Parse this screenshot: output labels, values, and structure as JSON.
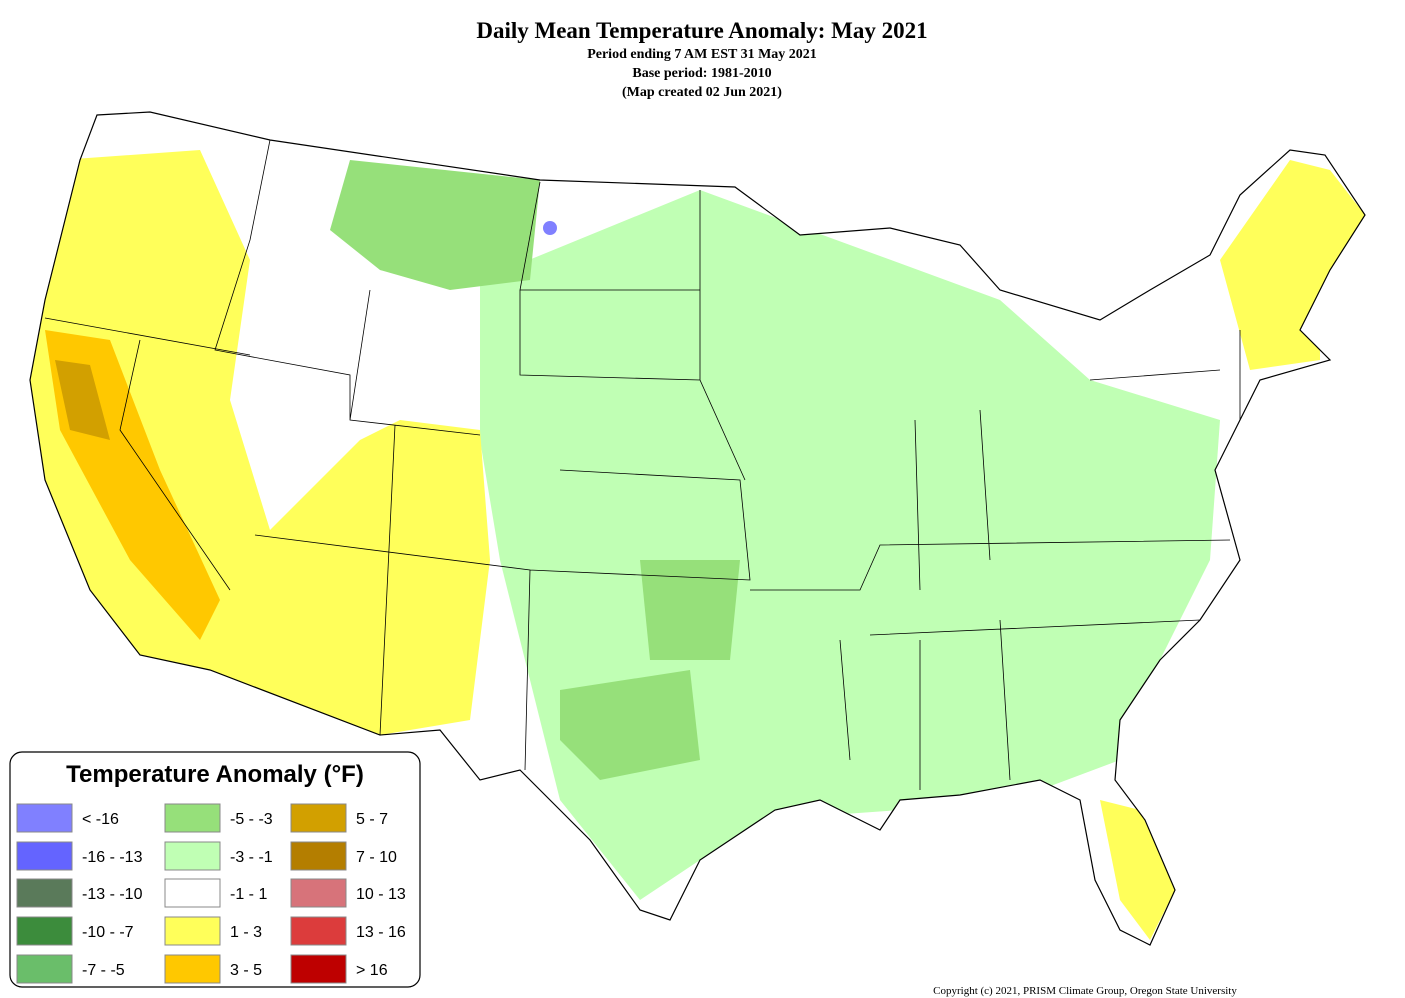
{
  "header": {
    "title": "Daily Mean Temperature Anomaly: May 2021",
    "lines": [
      "Period ending 7 AM EST 31 May 2021",
      "Base period: 1981-2010",
      "(Map created 02 Jun 2021)"
    ]
  },
  "legend": {
    "title": "Temperature Anomaly (°F)",
    "items": [
      {
        "label": "< -16",
        "color": "#8080ff"
      },
      {
        "label": "-16 - -13",
        "color": "#6464ff"
      },
      {
        "label": "-13 - -10",
        "color": "#5a7a5a"
      },
      {
        "label": "-10 - -7",
        "color": "#3c8c3c"
      },
      {
        "label": "-7 - -5",
        "color": "#6abe6a"
      },
      {
        "label": "-5 - -3",
        "color": "#96e07a"
      },
      {
        "label": "-3 - -1",
        "color": "#c0ffb4"
      },
      {
        "label": "-1 - 1",
        "color": "#ffffff"
      },
      {
        "label": "1 - 3",
        "color": "#ffff5a"
      },
      {
        "label": "3 - 5",
        "color": "#ffc800"
      },
      {
        "label": "5 - 7",
        "color": "#d2a000"
      },
      {
        "label": "7 - 10",
        "color": "#b47e00"
      },
      {
        "label": "10 - 13",
        "color": "#d7737a"
      },
      {
        "label": "13 - 16",
        "color": "#dc3c3c"
      },
      {
        "label": "> 16",
        "color": "#be0000"
      }
    ]
  },
  "copyright": "Copyright (c) 2021, PRISM Climate Group, Oregon State University"
}
